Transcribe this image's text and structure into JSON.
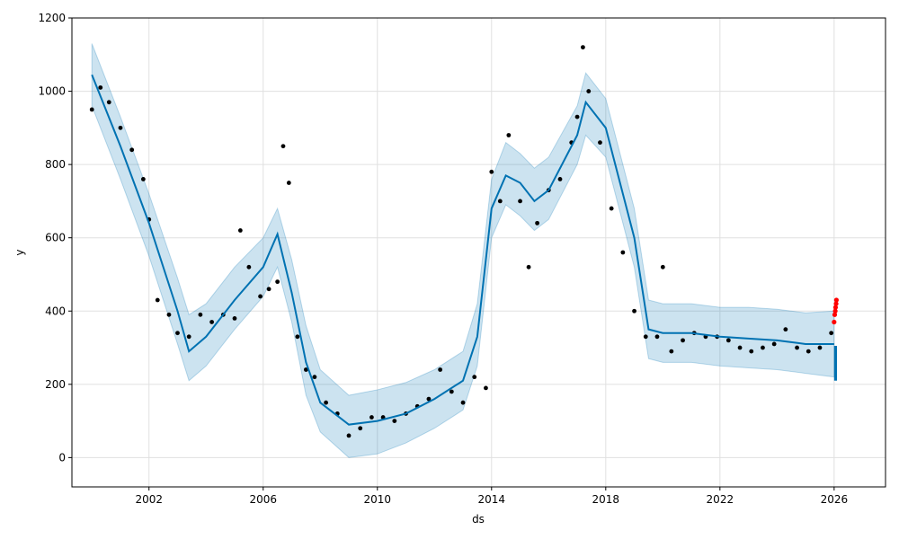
{
  "chart_data": {
    "type": "line",
    "title": "",
    "xlabel": "ds",
    "ylabel": "y",
    "xlim": [
      1999.3,
      2027.8
    ],
    "ylim": [
      -80,
      1200
    ],
    "x_ticks": [
      2002,
      2006,
      2010,
      2014,
      2018,
      2022,
      2026
    ],
    "x_tick_labels": [
      "2002",
      "2006",
      "2010",
      "2014",
      "2018",
      "2022",
      "2026"
    ],
    "y_ticks": [
      0,
      200,
      400,
      600,
      800,
      1000,
      1200
    ],
    "y_tick_labels": [
      "0",
      "200",
      "400",
      "600",
      "800",
      "1000",
      "1200"
    ],
    "grid": true,
    "colors": {
      "observed": "#000000",
      "forecast_line": "#0072B2",
      "uncertainty_band": "#0072B2",
      "recent_points": "#FF0000"
    },
    "series": [
      {
        "kind": "band",
        "x": [
          2000.0,
          2001.0,
          2002.0,
          2003.0,
          2003.4,
          2004.0,
          2005.0,
          2006.0,
          2006.5,
          2007.0,
          2007.5,
          2008.0,
          2009.0,
          2010.0,
          2011.0,
          2012.0,
          2013.0,
          2013.5,
          2014.0,
          2014.5,
          2015.0,
          2015.5,
          2016.0,
          2017.0,
          2017.3,
          2018.0,
          2019.0,
          2019.5,
          2020.0,
          2021.0,
          2022.0,
          2023.0,
          2024.0,
          2025.0,
          2026.0
        ],
        "upper": [
          1130,
          930,
          720,
          490,
          390,
          420,
          520,
          600,
          680,
          540,
          360,
          240,
          170,
          185,
          205,
          240,
          290,
          420,
          760,
          860,
          830,
          790,
          820,
          960,
          1050,
          980,
          680,
          430,
          420,
          420,
          410,
          410,
          405,
          395,
          400
        ],
        "lower": [
          960,
          760,
          550,
          310,
          210,
          250,
          350,
          440,
          520,
          370,
          170,
          70,
          0,
          10,
          40,
          80,
          130,
          250,
          600,
          690,
          660,
          620,
          650,
          800,
          880,
          820,
          520,
          270,
          260,
          260,
          250,
          245,
          240,
          230,
          220
        ]
      },
      {
        "kind": "line",
        "x": [
          2000.0,
          2001.0,
          2002.0,
          2003.0,
          2003.4,
          2004.0,
          2005.0,
          2006.0,
          2006.5,
          2007.0,
          2007.5,
          2008.0,
          2009.0,
          2010.0,
          2011.0,
          2012.0,
          2013.0,
          2013.5,
          2014.0,
          2014.5,
          2015.0,
          2015.5,
          2016.0,
          2017.0,
          2017.3,
          2018.0,
          2019.0,
          2019.5,
          2020.0,
          2021.0,
          2022.0,
          2023.0,
          2024.0,
          2025.0,
          2026.0
        ],
        "values": [
          1045,
          850,
          640,
          400,
          290,
          330,
          430,
          520,
          610,
          450,
          260,
          150,
          90,
          100,
          120,
          160,
          210,
          330,
          680,
          770,
          750,
          700,
          730,
          880,
          970,
          900,
          600,
          350,
          340,
          340,
          330,
          325,
          320,
          310,
          310
        ]
      },
      {
        "kind": "scatter",
        "name_hint": "observed",
        "x": [
          2000.0,
          2000.3,
          2000.6,
          2001.0,
          2001.4,
          2001.8,
          2002.0,
          2002.3,
          2002.7,
          2003.0,
          2003.4,
          2003.8,
          2004.2,
          2004.6,
          2005.0,
          2005.2,
          2005.5,
          2005.9,
          2006.2,
          2006.5,
          2006.7,
          2006.9,
          2007.2,
          2007.5,
          2007.8,
          2008.2,
          2008.6,
          2009.0,
          2009.4,
          2009.8,
          2010.2,
          2010.6,
          2011.0,
          2011.4,
          2011.8,
          2012.2,
          2012.6,
          2013.0,
          2013.4,
          2013.8,
          2014.0,
          2014.3,
          2014.6,
          2015.0,
          2015.3,
          2015.6,
          2016.0,
          2016.4,
          2016.8,
          2017.0,
          2017.2,
          2017.4,
          2017.8,
          2018.2,
          2018.6,
          2019.0,
          2019.4,
          2019.8,
          2020.0,
          2020.3,
          2020.7,
          2021.1,
          2021.5,
          2021.9,
          2022.3,
          2022.7,
          2023.1,
          2023.5,
          2023.9,
          2024.3,
          2024.7,
          2025.1,
          2025.5,
          2025.9
        ],
        "values": [
          950,
          1010,
          970,
          900,
          840,
          760,
          650,
          430,
          390,
          340,
          330,
          390,
          370,
          390,
          380,
          620,
          520,
          440,
          460,
          480,
          850,
          750,
          330,
          240,
          220,
          150,
          120,
          60,
          80,
          110,
          110,
          100,
          120,
          140,
          160,
          240,
          180,
          150,
          220,
          190,
          780,
          700,
          880,
          700,
          520,
          640,
          730,
          760,
          860,
          930,
          1120,
          1000,
          860,
          680,
          560,
          400,
          330,
          330,
          520,
          290,
          320,
          340,
          330,
          330,
          320,
          300,
          290,
          300,
          310,
          350,
          300,
          290,
          300,
          340
        ]
      },
      {
        "kind": "scatter",
        "name_hint": "recent",
        "x": [
          2026.0,
          2026.02,
          2026.04,
          2026.05,
          2026.07,
          2026.08
        ],
        "values": [
          370,
          390,
          400,
          410,
          420,
          430
        ]
      },
      {
        "kind": "forecast_bar",
        "x": [
          2026.0,
          2026.1
        ],
        "upper": [
          305,
          305
        ],
        "lower": [
          210,
          210
        ]
      }
    ]
  }
}
